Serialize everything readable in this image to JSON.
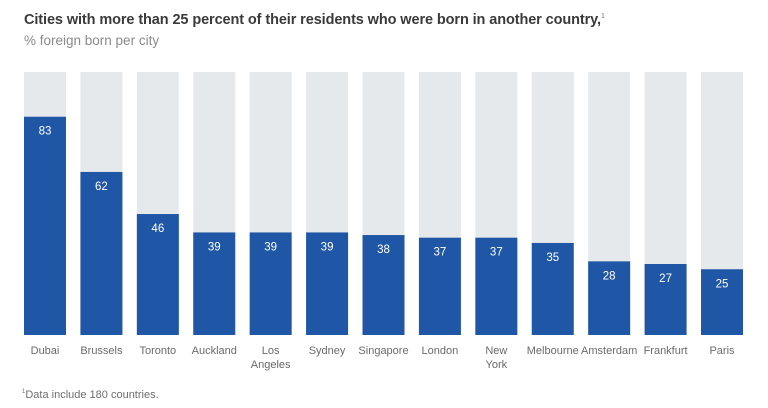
{
  "chart_data": {
    "type": "bar",
    "title": "Cities with more than 25 percent of their residents who were born in another country,",
    "title_footnote_marker": "1",
    "subtitle": "% foreign born per city",
    "xlabel": "",
    "ylabel": "% foreign born per city",
    "ylim": [
      0,
      100
    ],
    "grid": false,
    "legend": "none",
    "categories": [
      "Dubai",
      "Brussels",
      "Toronto",
      "Auckland",
      "Los Angeles",
      "Sydney",
      "Singapore",
      "London",
      "New York",
      "Melbourne",
      "Amsterdam",
      "Frankfurt",
      "Paris"
    ],
    "category_lines": [
      [
        "Dubai"
      ],
      [
        "Brussels"
      ],
      [
        "Toronto"
      ],
      [
        "Auckland"
      ],
      [
        "Los",
        "Angeles"
      ],
      [
        "Sydney"
      ],
      [
        "Singapore"
      ],
      [
        "London"
      ],
      [
        "New",
        "York"
      ],
      [
        "Melbourne"
      ],
      [
        "Amsterdam"
      ],
      [
        "Frankfurt"
      ],
      [
        "Paris"
      ]
    ],
    "values": [
      83,
      62,
      46,
      39,
      39,
      39,
      38,
      37,
      37,
      35,
      28,
      27,
      25
    ],
    "colors": {
      "bar": "#1f57a6",
      "track": "#e6e9ec",
      "bar_label": "#ffffff"
    },
    "footnote": "Data include 180 countries.",
    "footnote_marker": "1"
  }
}
